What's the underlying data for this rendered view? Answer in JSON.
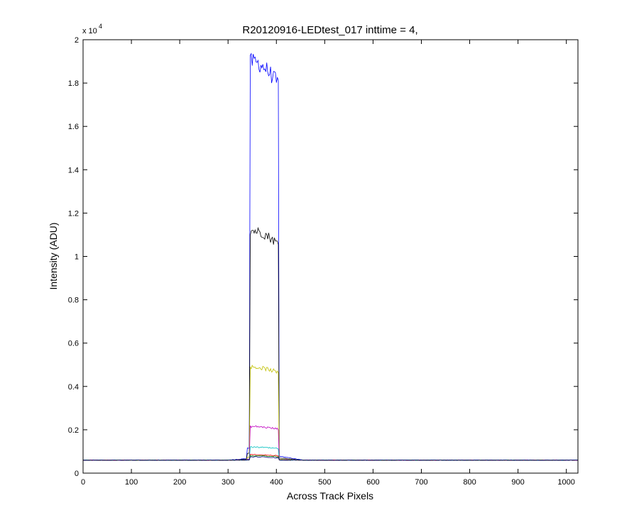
{
  "chart_data": {
    "type": "line",
    "title": "R20120916-LEDtest_017 inttime = 4,",
    "xlabel": "Across Track Pixels",
    "ylabel": "Intensity (ADU)",
    "y_multiplier_label": "x 10",
    "y_multiplier_exponent": "4",
    "xlim": [
      0,
      1024
    ],
    "ylim": [
      0,
      2
    ],
    "x_ticks": [
      0,
      100,
      200,
      300,
      400,
      500,
      600,
      700,
      800,
      900,
      1000
    ],
    "y_ticks": [
      0,
      0.2,
      0.4,
      0.6,
      0.8,
      1,
      1.2,
      1.4,
      1.6,
      1.8,
      2
    ],
    "y_tick_labels": [
      "0",
      "0.2",
      "0.4",
      "0.6",
      "0.8",
      "1",
      "1.2",
      "1.4",
      "1.6",
      "1.8",
      "2"
    ],
    "grid": false,
    "legend": "none",
    "baseline": 0.06,
    "plateau_start": 345,
    "plateau_end": 405,
    "series": [
      {
        "color": "#0000ff",
        "plateau_level": 1.9
      },
      {
        "color": "#000000",
        "plateau_level": 1.12
      },
      {
        "color": "#c0c000",
        "plateau_level": 0.49
      },
      {
        "color": "#bf00bf",
        "plateau_level": 0.215
      },
      {
        "color": "#00bfbf",
        "plateau_level": 0.12
      },
      {
        "color": "#ff0000",
        "plateau_level": 0.085
      },
      {
        "color": "#008000",
        "plateau_level": 0.08
      },
      {
        "color": "#000080",
        "plateau_level": 0.075
      }
    ]
  }
}
